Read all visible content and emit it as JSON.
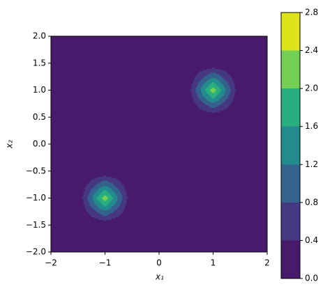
{
  "chart_data": {
    "type": "contour",
    "x_label": "x₁",
    "y_label": "x₂",
    "xlim": [
      -2,
      2
    ],
    "ylim": [
      -2,
      2
    ],
    "xticks": [
      {
        "value": -2,
        "label": "−2"
      },
      {
        "value": -1,
        "label": "−1"
      },
      0,
      1,
      2
    ],
    "yticks": [
      {
        "value": -2,
        "label": "−2.0"
      },
      {
        "value": -1.5,
        "label": "−1.5"
      },
      {
        "value": -1,
        "label": "−1.0"
      },
      {
        "value": -0.5,
        "label": "−0.5"
      },
      {
        "value": 0,
        "label": "0.0"
      },
      {
        "value": 0.5,
        "label": "0.5"
      },
      {
        "value": 1,
        "label": "1.0"
      },
      {
        "value": 1.5,
        "label": "1.5"
      },
      {
        "value": 2,
        "label": "2.0"
      }
    ],
    "x": [
      -2,
      -1.8,
      -1.6,
      -1.4,
      -1.2,
      -1,
      -0.8,
      -0.6,
      -0.4,
      -0.2,
      0,
      0.2,
      0.4,
      0.6,
      0.8,
      1,
      1.2,
      1.4,
      1.6,
      1.8,
      2
    ],
    "y": [
      -2,
      -1.8,
      -1.6,
      -1.4,
      -1.2,
      -1,
      -0.8,
      -0.6,
      -0.4,
      -0.2,
      0,
      0.2,
      0.4,
      0.6,
      0.8,
      1,
      1.2,
      1.4,
      1.6,
      1.8,
      2
    ],
    "z": [
      [
        0,
        0,
        0,
        0,
        0,
        0,
        0,
        0,
        0,
        0,
        0,
        0,
        0,
        0,
        0,
        0,
        0,
        0,
        0,
        0,
        0
      ],
      [
        0,
        0,
        0,
        0,
        0,
        0,
        0,
        0,
        0,
        0,
        0,
        0,
        0,
        0,
        0,
        0,
        0,
        0,
        0,
        0,
        0
      ],
      [
        0,
        0,
        0,
        0,
        0,
        0,
        0,
        0,
        0,
        0,
        0,
        0,
        0,
        0,
        0,
        0,
        0,
        0,
        0,
        0,
        0
      ],
      [
        0,
        0,
        0,
        0.1,
        0.3,
        0.45,
        0.3,
        0.1,
        0,
        0,
        0,
        0,
        0,
        0,
        0,
        0,
        0,
        0,
        0,
        0,
        0
      ],
      [
        0,
        0,
        0,
        0.3,
        0.85,
        1.4,
        0.85,
        0.3,
        0,
        0,
        0,
        0,
        0,
        0,
        0,
        0,
        0,
        0,
        0,
        0,
        0
      ],
      [
        0,
        0,
        0,
        0.45,
        1.4,
        2.3,
        1.4,
        0.45,
        0,
        0,
        0,
        0,
        0,
        0,
        0,
        0,
        0,
        0,
        0,
        0,
        0
      ],
      [
        0,
        0,
        0,
        0.3,
        0.85,
        1.4,
        0.85,
        0.3,
        0,
        0,
        0,
        0,
        0,
        0,
        0,
        0,
        0,
        0,
        0,
        0,
        0
      ],
      [
        0,
        0,
        0,
        0.1,
        0.3,
        0.45,
        0.3,
        0.1,
        0,
        0,
        0,
        0,
        0,
        0,
        0,
        0,
        0,
        0,
        0,
        0,
        0
      ],
      [
        0,
        0,
        0,
        0,
        0,
        0,
        0,
        0,
        0,
        0,
        0,
        0,
        0,
        0,
        0,
        0,
        0,
        0,
        0,
        0,
        0
      ],
      [
        0,
        0,
        0,
        0,
        0,
        0,
        0,
        0,
        0,
        0,
        0,
        0,
        0,
        0,
        0,
        0,
        0,
        0,
        0,
        0,
        0
      ],
      [
        0,
        0,
        0,
        0,
        0,
        0,
        0,
        0,
        0,
        0,
        0,
        0,
        0,
        0,
        0,
        0,
        0,
        0,
        0,
        0,
        0
      ],
      [
        0,
        0,
        0,
        0,
        0,
        0,
        0,
        0,
        0,
        0,
        0,
        0,
        0,
        0,
        0,
        0,
        0,
        0,
        0,
        0,
        0
      ],
      [
        0,
        0,
        0,
        0,
        0,
        0,
        0,
        0,
        0,
        0,
        0,
        0,
        0,
        0,
        0,
        0,
        0,
        0,
        0,
        0,
        0
      ],
      [
        0,
        0,
        0,
        0,
        0,
        0,
        0,
        0,
        0,
        0,
        0,
        0,
        0,
        0.1,
        0.3,
        0.45,
        0.3,
        0.1,
        0,
        0,
        0
      ],
      [
        0,
        0,
        0,
        0,
        0,
        0,
        0,
        0,
        0,
        0,
        0,
        0,
        0,
        0.3,
        0.85,
        1.4,
        0.85,
        0.3,
        0,
        0,
        0
      ],
      [
        0,
        0,
        0,
        0,
        0,
        0,
        0,
        0,
        0,
        0,
        0,
        0,
        0,
        0.45,
        1.4,
        2.3,
        1.4,
        0.45,
        0,
        0,
        0
      ],
      [
        0,
        0,
        0,
        0,
        0,
        0,
        0,
        0,
        0,
        0,
        0,
        0,
        0,
        0.3,
        0.85,
        1.4,
        0.85,
        0.3,
        0,
        0,
        0
      ],
      [
        0,
        0,
        0,
        0,
        0,
        0,
        0,
        0,
        0,
        0,
        0,
        0,
        0,
        0.1,
        0.3,
        0.45,
        0.3,
        0.1,
        0,
        0,
        0
      ],
      [
        0,
        0,
        0,
        0,
        0,
        0,
        0,
        0,
        0,
        0,
        0,
        0,
        0,
        0,
        0,
        0,
        0,
        0,
        0,
        0,
        0
      ],
      [
        0,
        0,
        0,
        0,
        0,
        0,
        0,
        0,
        0,
        0,
        0,
        0,
        0,
        0,
        0,
        0,
        0,
        0,
        0,
        0,
        0
      ],
      [
        0,
        0,
        0,
        0,
        0,
        0,
        0,
        0,
        0,
        0,
        0,
        0,
        0,
        0,
        0,
        0,
        0,
        0,
        0,
        0,
        0
      ]
    ],
    "levels": [
      0,
      0.4,
      0.8,
      1.2,
      1.6,
      2.0,
      2.4,
      2.8
    ],
    "colors": [
      "#471a6c",
      "#453781",
      "#33638d",
      "#238a8d",
      "#29af7f",
      "#73d055",
      "#dde318"
    ],
    "colorbar_ticks": [
      {
        "value": 0,
        "label": "0.0"
      },
      {
        "value": 0.4,
        "label": "0.4"
      },
      {
        "value": 0.8,
        "label": "0.8"
      },
      {
        "value": 1.2,
        "label": "1.2"
      },
      {
        "value": 1.6,
        "label": "1.6"
      },
      {
        "value": 2.0,
        "label": "2.0"
      },
      {
        "value": 2.4,
        "label": "2.4"
      },
      {
        "value": 2.8,
        "label": "2.8"
      }
    ]
  }
}
